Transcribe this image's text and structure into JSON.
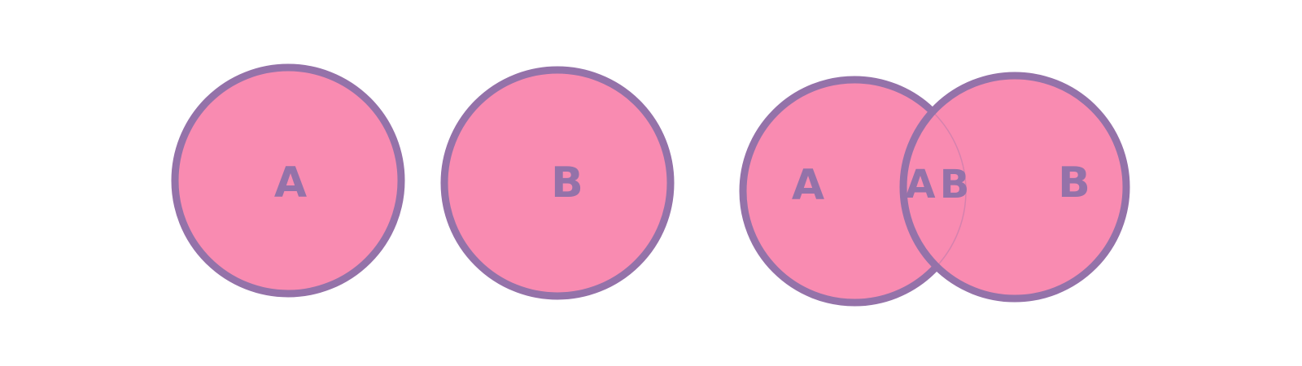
{
  "colors": {
    "fill": "#F98BB1",
    "stroke": "#9472A9",
    "label": "#9472A9",
    "background": "#FFFFFF"
  },
  "left_group": {
    "circle_a": {
      "label": "A"
    },
    "circle_b": {
      "label": "B"
    }
  },
  "right_group": {
    "circle_a": {
      "label": "A"
    },
    "circle_b": {
      "label": "B"
    },
    "intersection": {
      "label_a": "A",
      "label_b": "B"
    }
  }
}
